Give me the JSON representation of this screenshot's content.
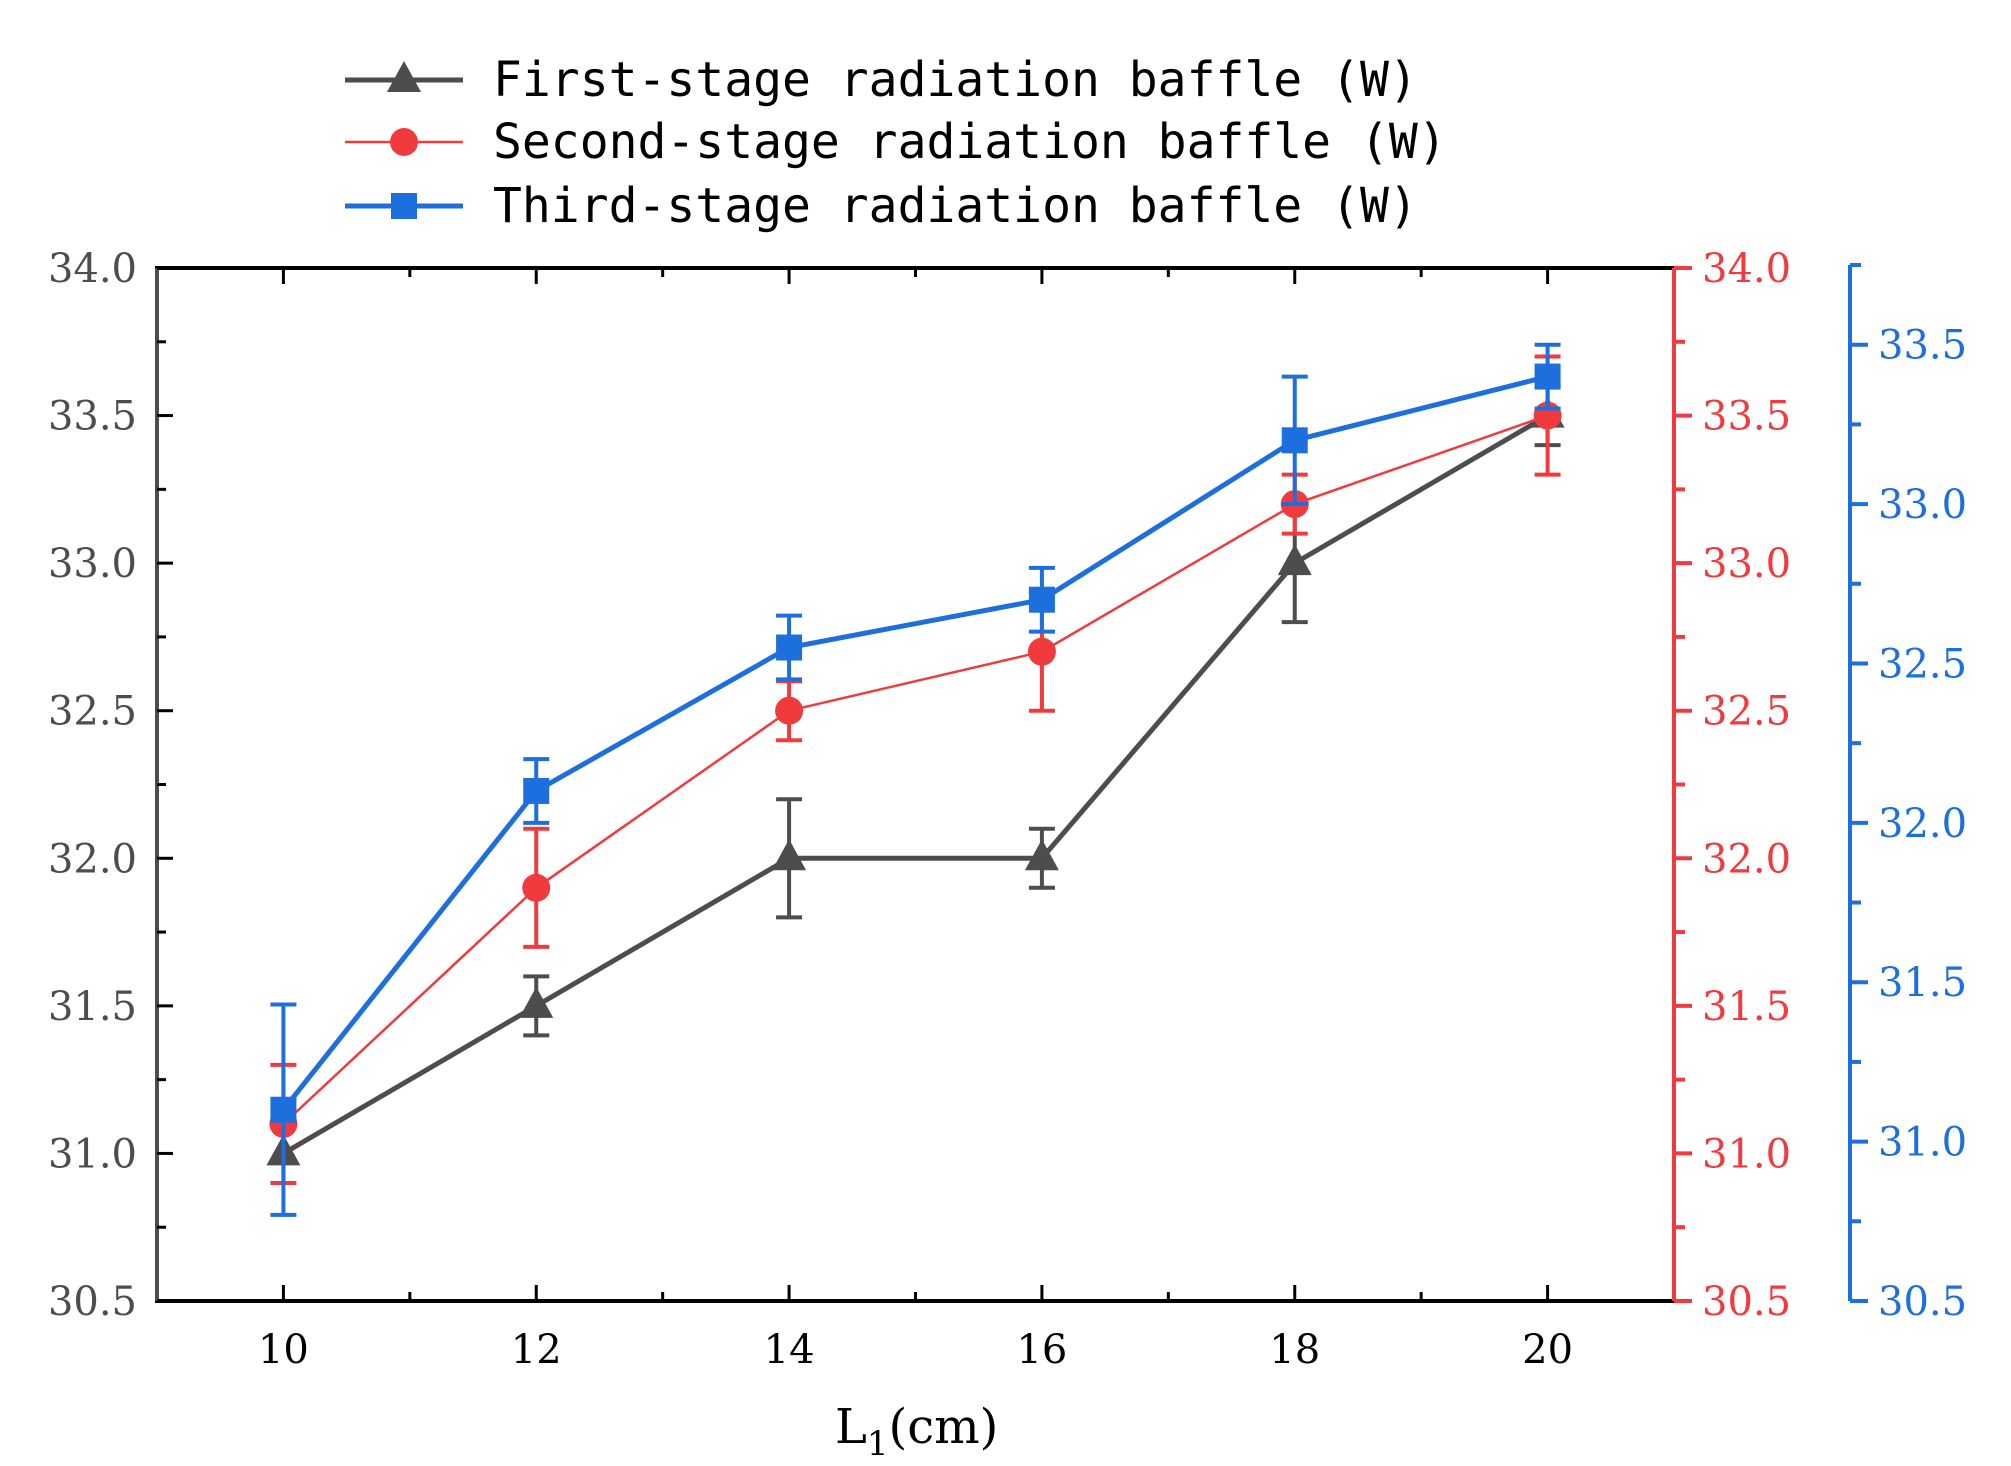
{
  "chart_data": {
    "type": "line",
    "title": "",
    "x": [
      10,
      12,
      14,
      16,
      18,
      20
    ],
    "xlim": [
      9,
      21
    ],
    "xticks": [
      "10",
      "12",
      "14",
      "16",
      "18",
      "20"
    ],
    "xlabel_main": "L",
    "xlabel_sub": "1",
    "xlabel_unit": "(cm)",
    "grid": false,
    "legend_position": "top-center",
    "axes": [
      {
        "name": "left",
        "side": "left",
        "color": "#4d4d4d",
        "ylim": [
          30.5,
          34.0
        ],
        "ticks": [
          "30.5",
          "31.0",
          "31.5",
          "32.0",
          "32.5",
          "33.0",
          "33.5",
          "34.0"
        ]
      },
      {
        "name": "right-red",
        "side": "right",
        "color": "#f03a3e",
        "ylim": [
          30.5,
          34.0
        ],
        "ticks": [
          "30.5",
          "31.0",
          "31.5",
          "32.0",
          "32.5",
          "33.0",
          "33.5",
          "34.0"
        ]
      },
      {
        "name": "right-blue",
        "side": "right-offset",
        "color": "#1c6fdc",
        "ylim": [
          30.5,
          33.75
        ],
        "ticks": [
          "30.5",
          "31.0",
          "31.5",
          "32.0",
          "32.5",
          "33.0",
          "33.5"
        ]
      }
    ],
    "series": [
      {
        "name": "First-stage radiation baffle (W)",
        "axis": 0,
        "color": "#4d4d4d",
        "marker": "triangle",
        "values": [
          31.0,
          31.5,
          32.0,
          32.0,
          33.0,
          33.5
        ],
        "errors": [
          0.0,
          0.1,
          0.2,
          0.1,
          0.2,
          0.1
        ]
      },
      {
        "name": "Second-stage radiation baffle (W)",
        "axis": 1,
        "color": "#f03a3e",
        "marker": "circle",
        "values": [
          31.1,
          31.9,
          32.5,
          32.7,
          33.2,
          33.5
        ],
        "errors": [
          0.2,
          0.2,
          0.1,
          0.2,
          0.1,
          0.2
        ]
      },
      {
        "name": "Third-stage radiation baffle (W)",
        "axis": 2,
        "color": "#1c6fdc",
        "marker": "square",
        "values": [
          31.1,
          32.1,
          32.55,
          32.7,
          33.2,
          33.4
        ],
        "errors": [
          0.33,
          0.1,
          0.1,
          0.1,
          0.2,
          0.1
        ]
      }
    ]
  }
}
